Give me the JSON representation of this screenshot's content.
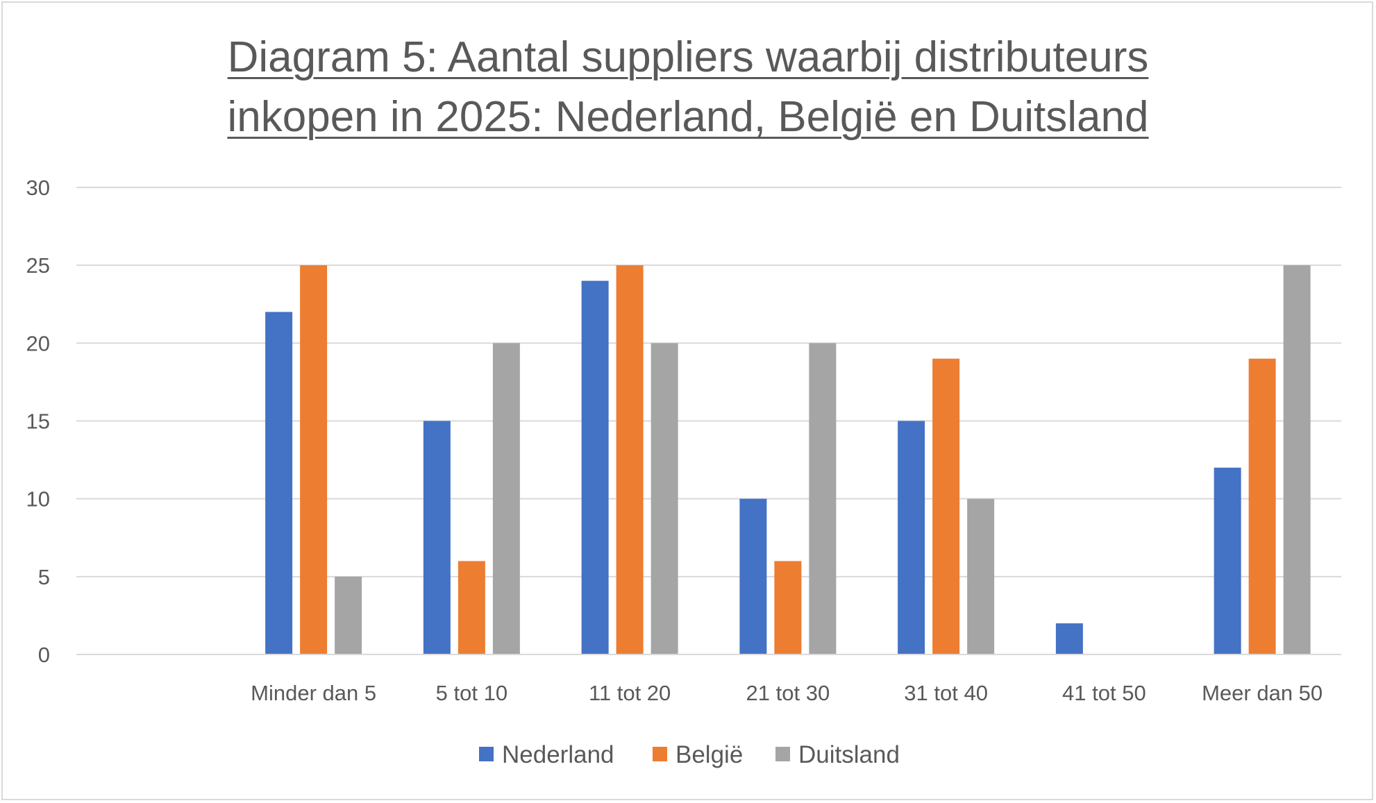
{
  "chart_data": {
    "type": "bar",
    "title_line1": "Diagram 5: Aantal suppliers waarbij distributeurs",
    "title_line2": "inkopen in 2025: Nederland, België en Duitsland",
    "categories": [
      "",
      "Minder dan 5",
      "5 tot 10",
      "11 tot 20",
      "21 tot 30",
      "31 tot 40",
      "41 tot 50",
      "Meer dan 50"
    ],
    "series": [
      {
        "name": "Nederland",
        "color": "#4472c4",
        "values": [
          null,
          22,
          15,
          24,
          10,
          15,
          2,
          12
        ]
      },
      {
        "name": "België",
        "color": "#ed7d31",
        "values": [
          null,
          25,
          6,
          25,
          6,
          19,
          null,
          19
        ]
      },
      {
        "name": "Duitsland",
        "color": "#a5a5a5",
        "values": [
          null,
          5,
          20,
          20,
          20,
          10,
          null,
          25
        ]
      }
    ],
    "ylim": [
      0,
      30
    ],
    "yticks": [
      0,
      5,
      10,
      15,
      20,
      25,
      30
    ],
    "grid": true,
    "legend": "bottom"
  }
}
